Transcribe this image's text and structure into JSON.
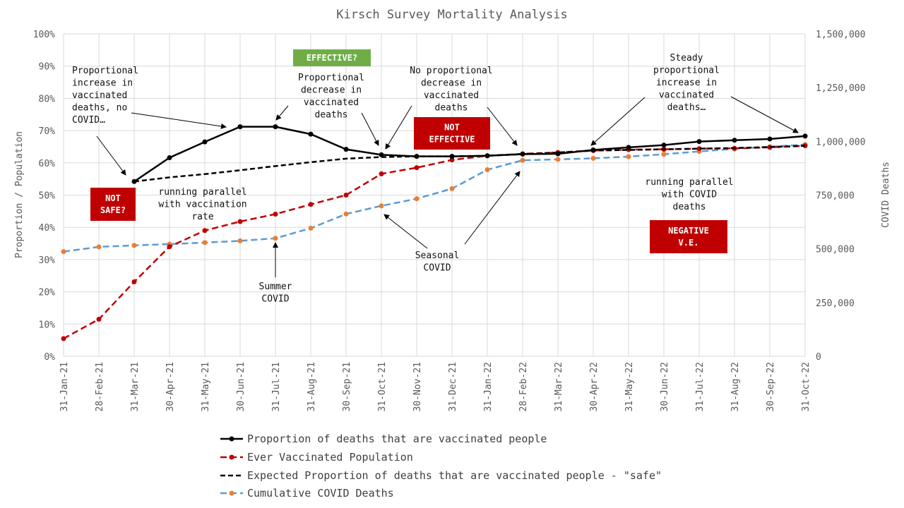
{
  "chart_data": {
    "type": "line",
    "title": "Kirsch Survey Mortality Analysis",
    "ylabel": "Proportion / Population",
    "y2label": "COVID Deaths",
    "ylim": [
      0,
      1
    ],
    "y2lim": [
      0,
      1500000
    ],
    "yticks": [
      "0%",
      "10%",
      "20%",
      "30%",
      "40%",
      "50%",
      "60%",
      "70%",
      "80%",
      "90%",
      "100%"
    ],
    "y2ticks": [
      "0",
      "250,000",
      "500,000",
      "750,000",
      "1,000,000",
      "1,250,000",
      "1,500,000"
    ],
    "categories": [
      "31-Jan-21",
      "28-Feb-21",
      "31-Mar-21",
      "30-Apr-21",
      "31-May-21",
      "30-Jun-21",
      "31-Jul-21",
      "31-Aug-21",
      "30-Sep-21",
      "31-Oct-21",
      "30-Nov-21",
      "31-Dec-21",
      "31-Jan-22",
      "28-Feb-22",
      "31-Mar-22",
      "30-Apr-22",
      "31-May-22",
      "30-Jun-22",
      "31-Jul-22",
      "31-Aug-22",
      "30-Sep-22",
      "31-Oct-22"
    ],
    "grid": true,
    "legend_position": "bottom",
    "series": [
      {
        "name": "Proportion of deaths that are vaccinated people",
        "axis": "left",
        "color": "#000000",
        "dash": "solid",
        "marker_color": "#000000",
        "values": [
          null,
          null,
          0.542,
          0.616,
          0.665,
          0.712,
          0.712,
          0.689,
          0.642,
          0.625,
          0.62,
          0.62,
          0.622,
          0.627,
          0.628,
          0.64,
          0.648,
          0.655,
          0.666,
          0.67,
          0.674,
          0.683
        ]
      },
      {
        "name": "Ever Vaccinated Population",
        "axis": "left",
        "color": "#c00000",
        "dash": "dashed",
        "marker_color": "#c00000",
        "values": [
          0.055,
          0.115,
          0.231,
          0.34,
          0.39,
          0.418,
          0.441,
          0.471,
          0.5,
          0.566,
          0.585,
          0.609,
          0.622,
          0.628,
          0.632,
          0.638,
          0.641,
          0.642,
          0.644,
          0.645,
          0.648,
          0.653
        ]
      },
      {
        "name": "Expected Proportion of deaths that are vaccinated people - \"safe\"",
        "axis": "left",
        "color": "#000000",
        "dash": "dashed",
        "marker_color": null,
        "values": [
          null,
          null,
          0.542,
          0.555,
          0.565,
          0.577,
          0.59,
          0.602,
          0.613,
          0.618,
          0.62,
          0.62,
          0.622,
          0.627,
          0.632,
          0.638,
          0.64,
          0.642,
          0.644,
          0.646,
          0.649,
          0.653
        ]
      },
      {
        "name": "Cumulative COVID Deaths",
        "axis": "right",
        "color": "#5b9bd5",
        "dash": "dashed",
        "marker_color": "#ed7d31",
        "values": [
          487000,
          509000,
          516000,
          522000,
          529000,
          537000,
          549000,
          596000,
          662000,
          700000,
          733000,
          780000,
          868000,
          912000,
          916000,
          921000,
          929000,
          940000,
          953000,
          965000,
          975000,
          985000
        ]
      }
    ],
    "annotations": [
      {
        "text": [
          "Proportional",
          "increase in",
          "vaccinated",
          "deaths, no",
          "COVID…"
        ]
      },
      {
        "text": [
          "Proportional",
          "decrease in",
          "vaccinated",
          "deaths"
        ]
      },
      {
        "text": [
          "No proportional",
          "decrease in",
          "vaccinated",
          "deaths"
        ]
      },
      {
        "text": [
          "Steady",
          "proportional",
          "increase in",
          "vaccinated",
          "deaths…"
        ]
      },
      {
        "text": [
          "running parallel",
          "with vaccination",
          "rate"
        ]
      },
      {
        "text": [
          "running parallel",
          "with COVID",
          "deaths"
        ]
      },
      {
        "text": [
          "Seasonal",
          "COVID"
        ]
      },
      {
        "text": [
          "Summer",
          "COVID"
        ]
      }
    ],
    "boxes": [
      {
        "text": [
          "EFFECTIVE?"
        ],
        "color": "#70ad47"
      },
      {
        "text": [
          "NOT",
          "EFFECTIVE"
        ],
        "color": "#c00000"
      },
      {
        "text": [
          "NOT",
          "SAFE?"
        ],
        "color": "#c00000"
      },
      {
        "text": [
          "NEGATIVE",
          "V.E."
        ],
        "color": "#c00000"
      }
    ]
  }
}
